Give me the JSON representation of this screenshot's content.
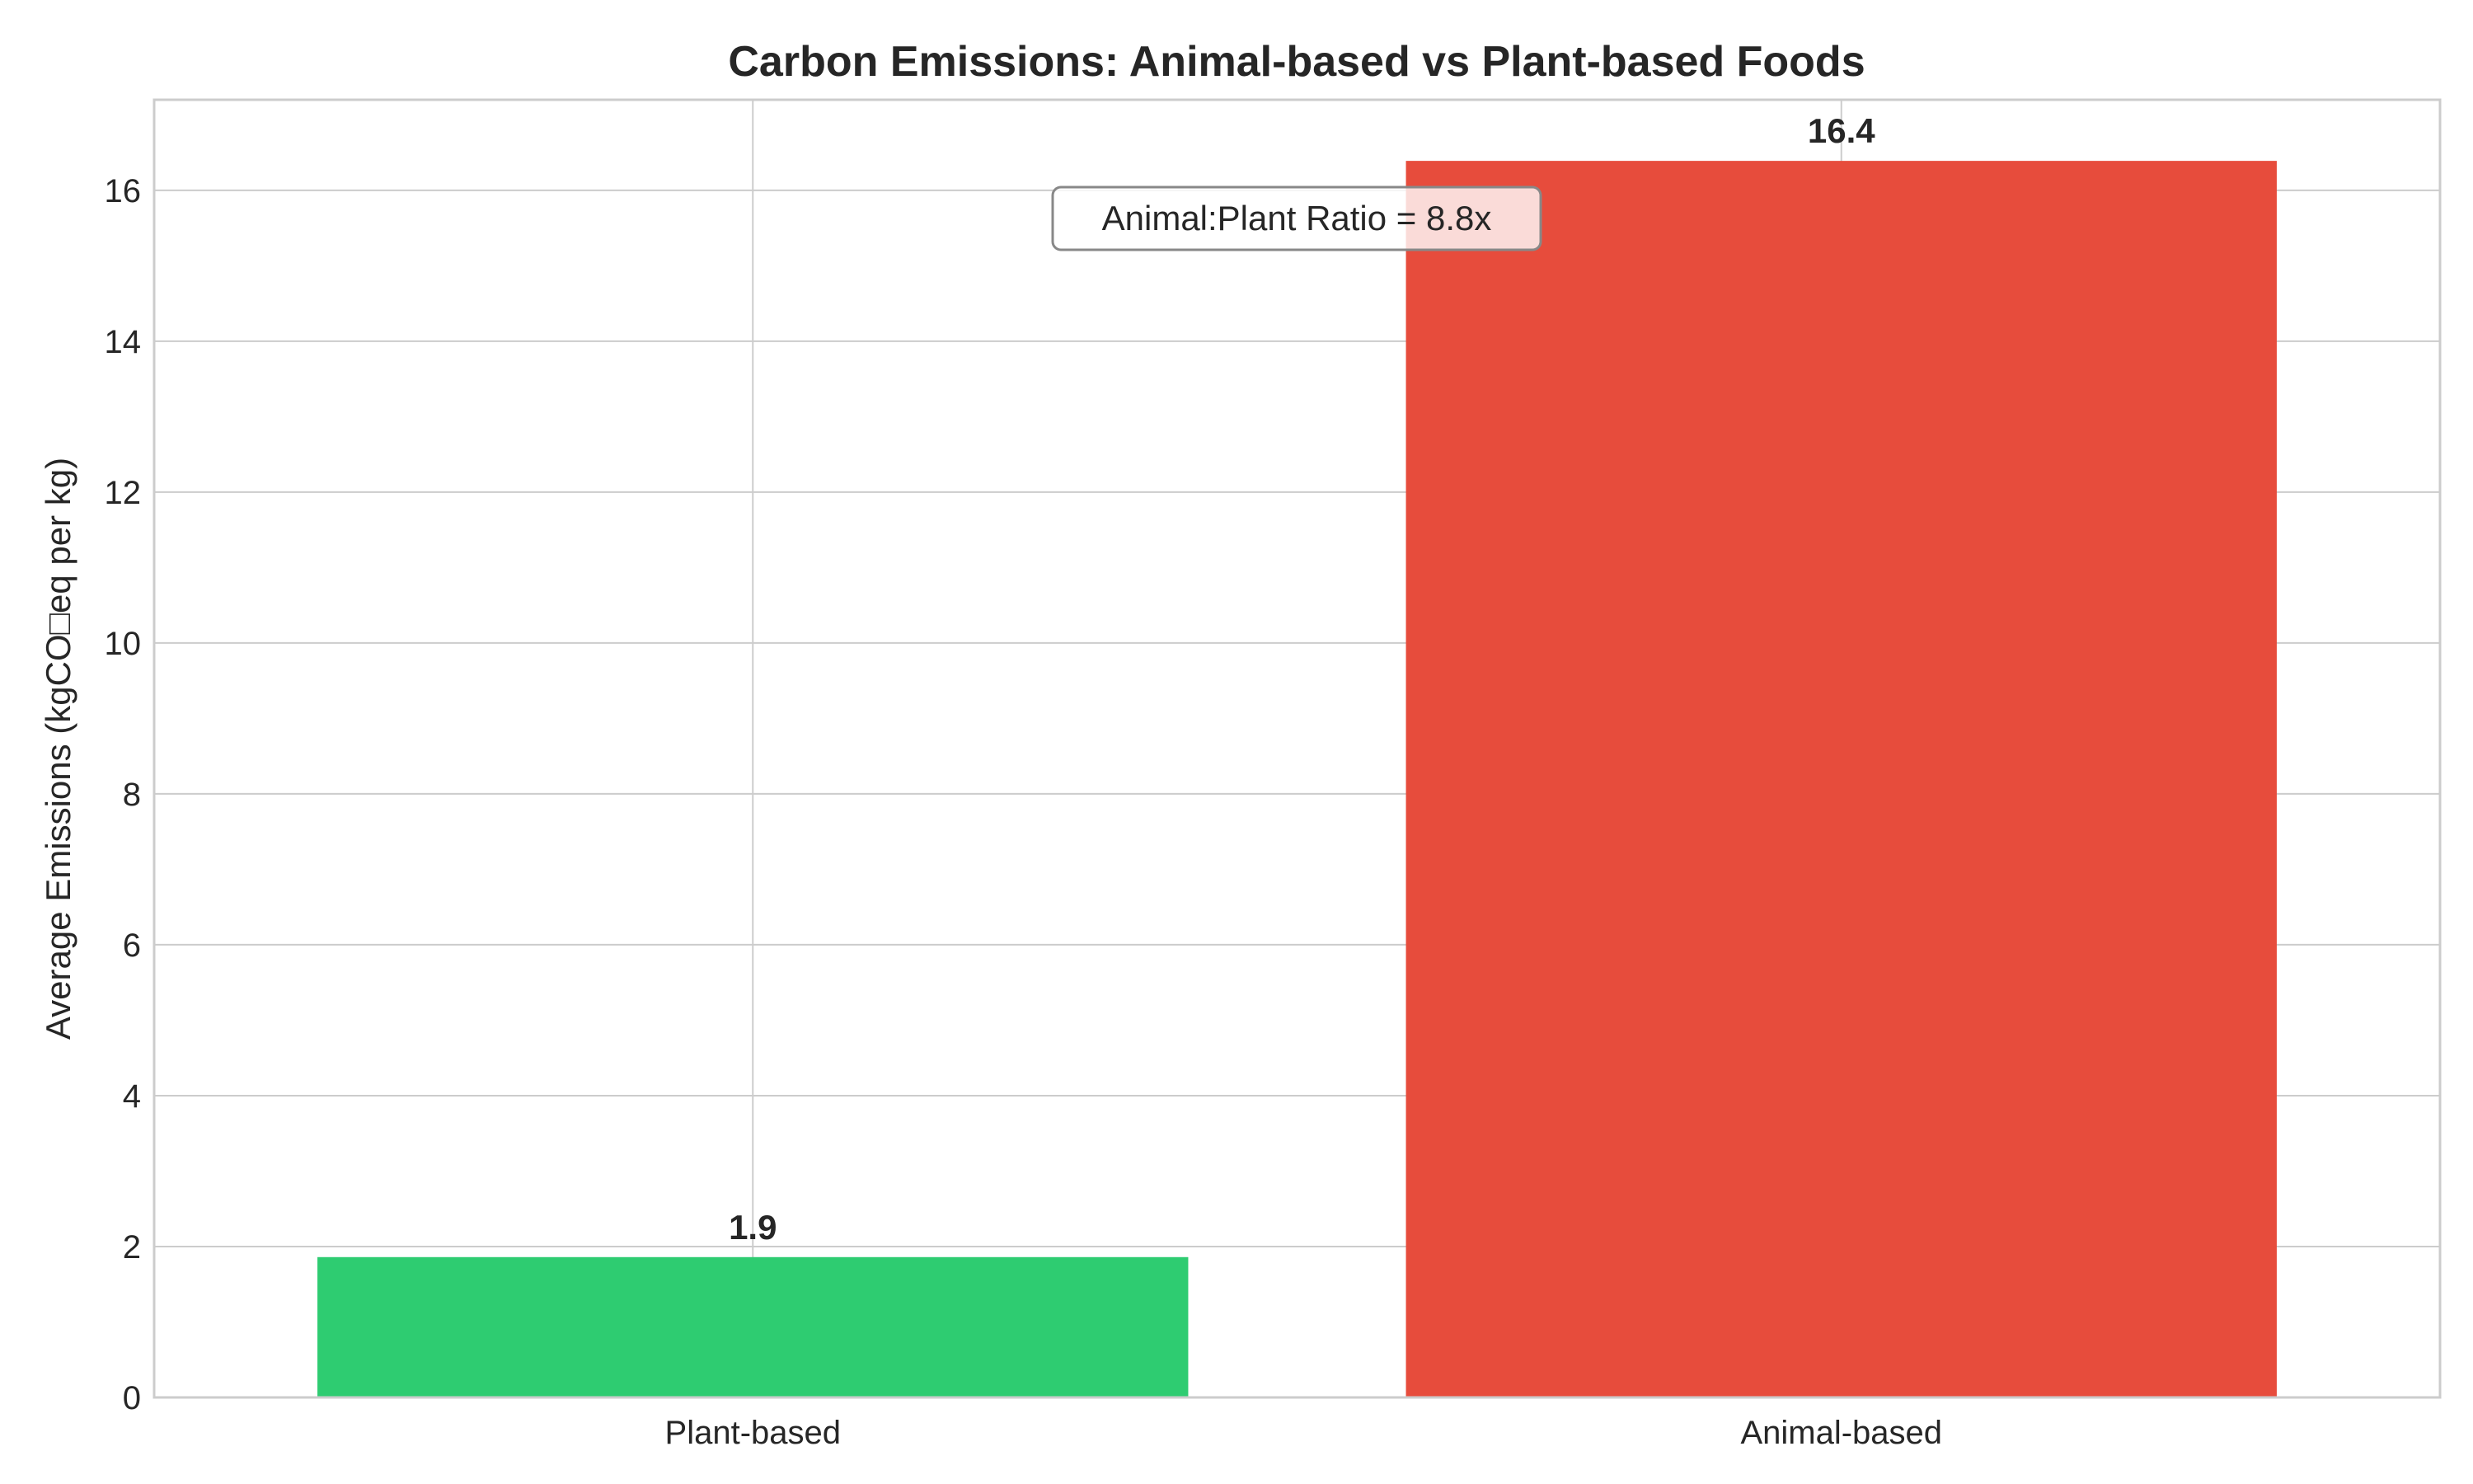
{
  "chart_data": {
    "type": "bar",
    "title": "Carbon Emissions: Animal-based vs Plant-based Foods",
    "xlabel": "",
    "ylabel": "Average Emissions (kgCO□eq per kg)",
    "categories": [
      "Plant-based",
      "Animal-based"
    ],
    "values": [
      1.86,
      16.39
    ],
    "value_labels": [
      "1.9",
      "16.4"
    ],
    "colors": [
      "#2ecc71",
      "#e74c3c"
    ],
    "ylim": [
      0,
      17.2
    ],
    "yticks": [
      0,
      2,
      4,
      6,
      8,
      10,
      12,
      14,
      16
    ],
    "grid": true,
    "annotation": "Animal:Plant Ratio = 8.8x"
  }
}
